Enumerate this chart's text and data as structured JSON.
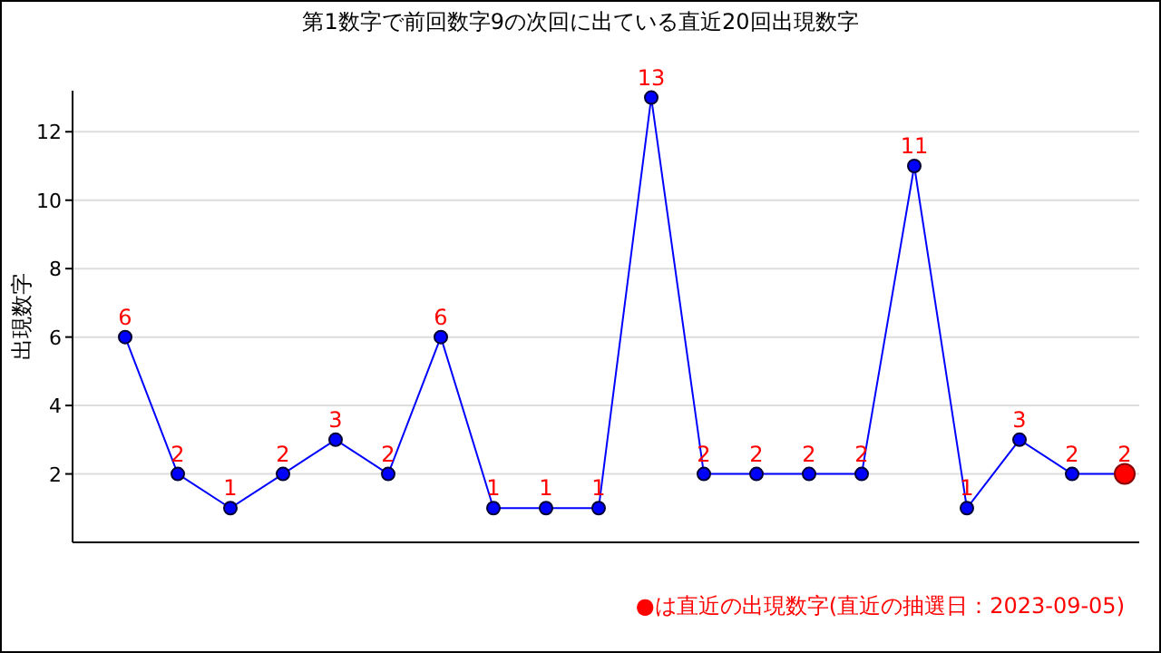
{
  "chart_data": {
    "type": "line",
    "title": "第1数字で前回数字9の次回に出ている直近20回出現数字",
    "ylabel": "出現数字",
    "categories": [
      null,
      null,
      null,
      null,
      null,
      null,
      null,
      null,
      null,
      null,
      null,
      null,
      null,
      null,
      null,
      null,
      null,
      null,
      null,
      null
    ],
    "series": [
      {
        "color": "#0000ff",
        "values": [
          6,
          2,
          1,
          2,
          3,
          2,
          6,
          1,
          1,
          1,
          13,
          2,
          2,
          2,
          2,
          11,
          1,
          3,
          2,
          2
        ],
        "colors": [
          "#0000ff",
          "#0000ff",
          "#0000ff",
          "#0000ff",
          "#0000ff",
          "#0000ff",
          "#0000ff",
          "#0000ff",
          "#0000ff",
          "#0000ff",
          "#0000ff",
          "#0000ff",
          "#0000ff",
          "#0000ff",
          "#0000ff",
          "#0000ff",
          "#0000ff",
          "#0000ff",
          "#0000ff",
          "#ff0000"
        ]
      }
    ],
    "ylim": [
      0,
      13.2
    ],
    "yticks": [
      2,
      4,
      6,
      8,
      10,
      12
    ],
    "grid": "y",
    "marker": "circle",
    "line_style": "solid",
    "data_labels": true,
    "annotations": [
      "●は直近の出現数字(直近の抽選日：2023-09-05)"
    ]
  }
}
